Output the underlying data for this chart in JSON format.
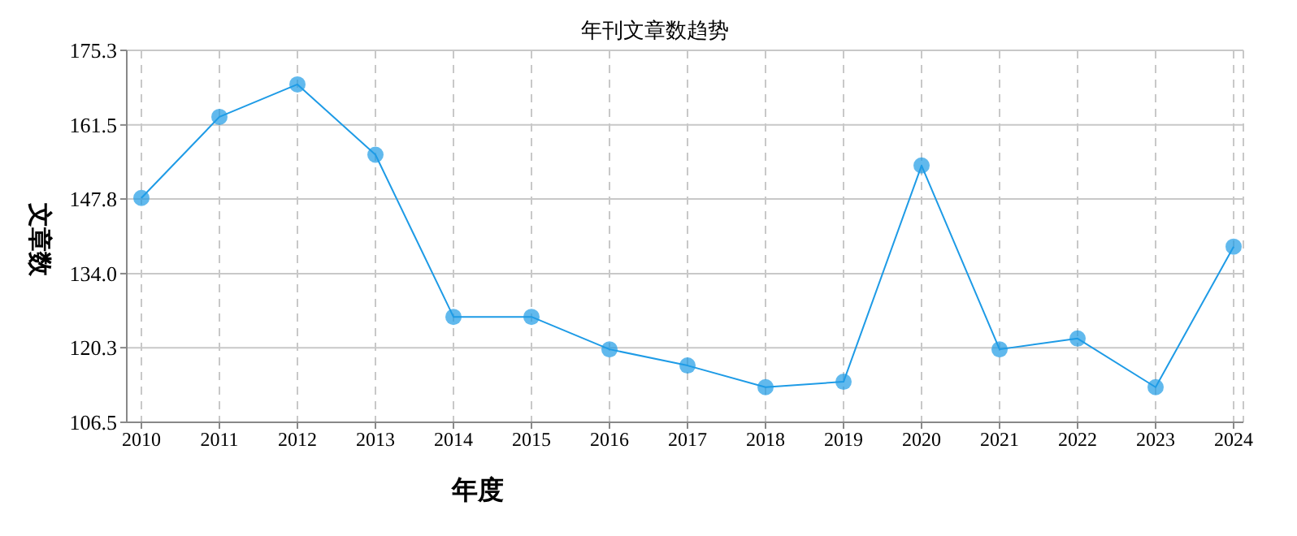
{
  "chart_data": {
    "type": "line",
    "title": "年刊文章数趋势",
    "xlabel": "年度",
    "ylabel": "文章数",
    "categories": [
      "2010",
      "2011",
      "2012",
      "2013",
      "2014",
      "2015",
      "2016",
      "2017",
      "2018",
      "2019",
      "2020",
      "2021",
      "2022",
      "2023",
      "2024"
    ],
    "series": [
      {
        "color": "#1e9be6",
        "values": [
          148,
          163,
          169,
          156,
          126,
          126,
          120,
          117,
          113,
          114,
          154,
          120,
          122,
          113,
          139
        ]
      }
    ],
    "ylim": [
      106.5,
      175.3
    ],
    "yticks": [
      106.5,
      {
        "value": 120.3,
        "label": "120.3"
      },
      {
        "value": 134,
        "label": "134.0"
      },
      147.8,
      161.5,
      175.3
    ],
    "grid": true,
    "marker": "circle",
    "line_style": "solid"
  }
}
